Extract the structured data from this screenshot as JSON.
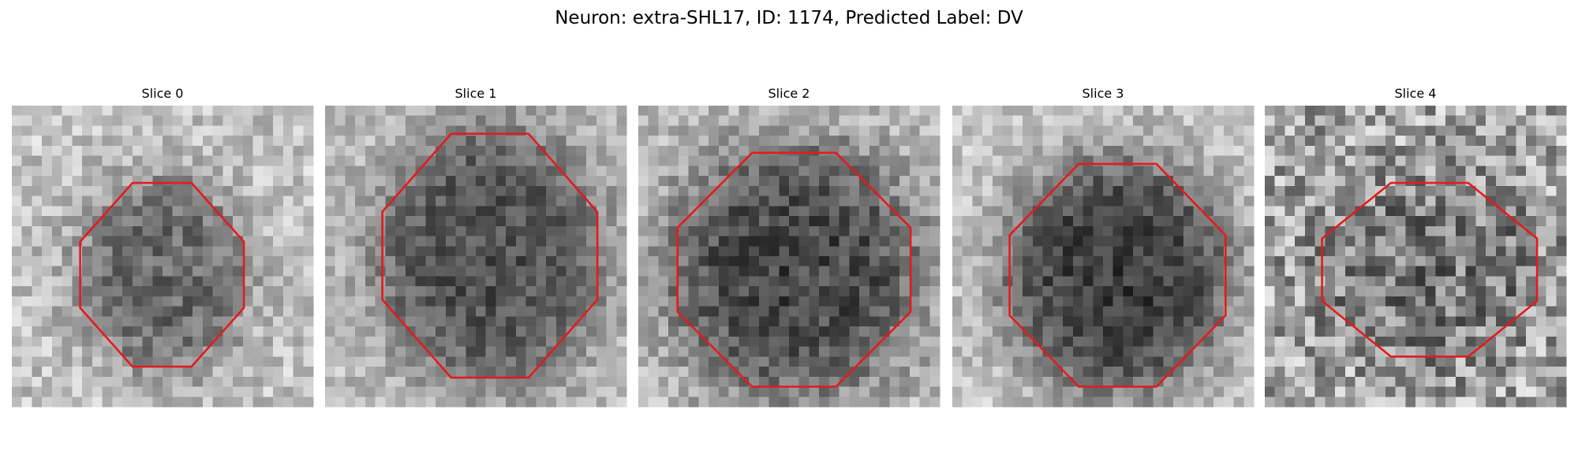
{
  "title": "Neuron: extra-SHL17, ID: 1174, Predicted Label: DV",
  "panels": [
    {
      "title": "Slice 0"
    },
    {
      "title": "Slice 1"
    },
    {
      "title": "Slice 2"
    },
    {
      "title": "Slice 3"
    },
    {
      "title": "Slice 4"
    }
  ]
}
